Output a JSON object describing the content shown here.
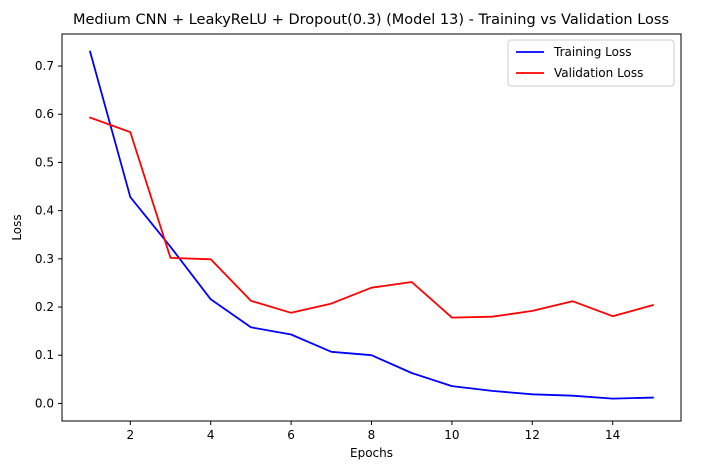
{
  "chart_data": {
    "type": "line",
    "title": "Medium CNN + LeakyReLU + Dropout(0.3) (Model 13) - Training vs Validation Loss",
    "xlabel": "Epochs",
    "ylabel": "Loss",
    "xlim": [
      0.3,
      15.7
    ],
    "ylim": [
      -0.0365,
      0.7665
    ],
    "xticks": [
      2,
      4,
      6,
      8,
      10,
      12,
      14
    ],
    "yticks": [
      0.0,
      0.1,
      0.2,
      0.3,
      0.4,
      0.5,
      0.6,
      0.7
    ],
    "grid": false,
    "legend_position": "top-right",
    "x": [
      1,
      2,
      3,
      4,
      5,
      6,
      7,
      8,
      9,
      10,
      11,
      12,
      13,
      14,
      15
    ],
    "series": [
      {
        "name": "Training Loss",
        "color": "#0000ff",
        "values": [
          0.73,
          0.428,
          0.325,
          0.216,
          0.158,
          0.143,
          0.107,
          0.1,
          0.063,
          0.036,
          0.026,
          0.019,
          0.016,
          0.01,
          0.012
        ]
      },
      {
        "name": "Validation Loss",
        "color": "#ff0000",
        "values": [
          0.593,
          0.563,
          0.302,
          0.299,
          0.213,
          0.188,
          0.207,
          0.24,
          0.252,
          0.178,
          0.18,
          0.192,
          0.212,
          0.181,
          0.204
        ]
      }
    ]
  }
}
